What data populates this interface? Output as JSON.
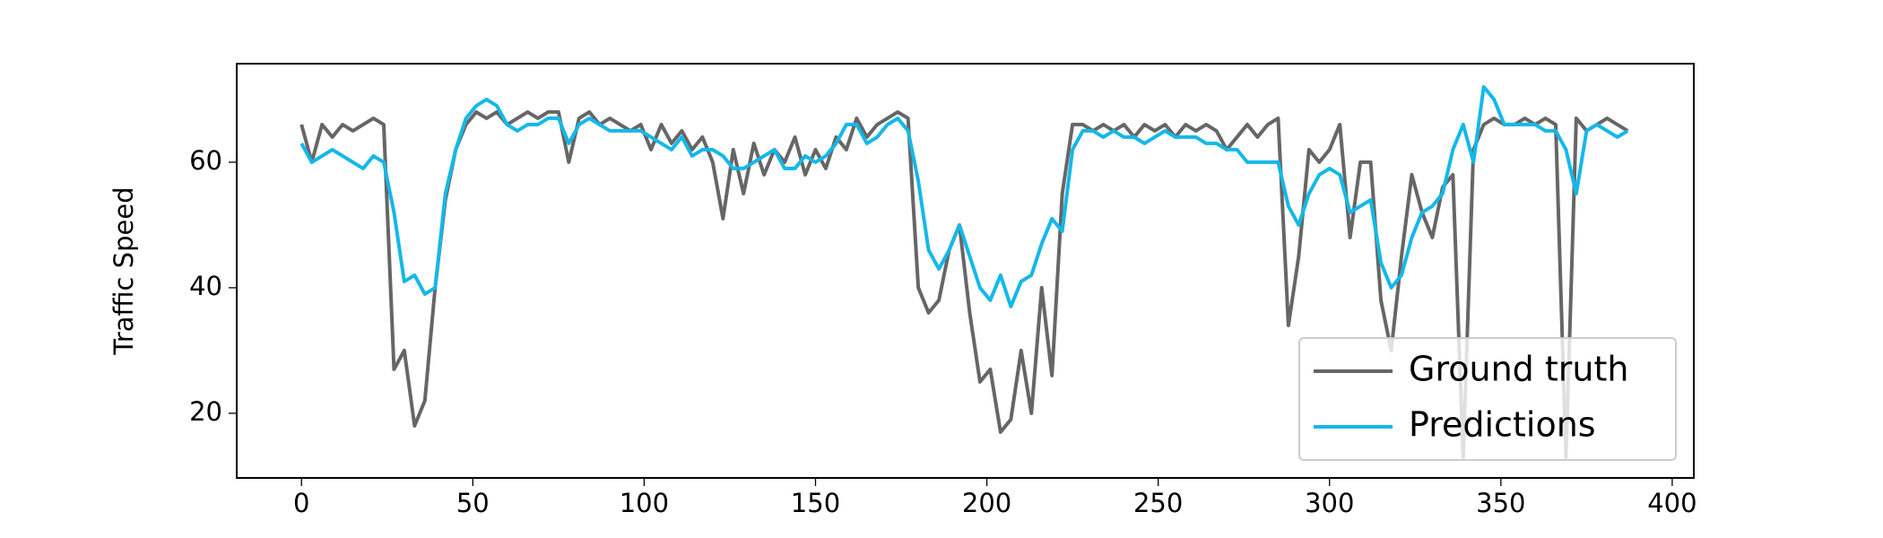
{
  "chart_data": {
    "type": "line",
    "y_label": "Traffic Speed",
    "x": [
      0,
      3,
      6,
      9,
      12,
      15,
      18,
      21,
      24,
      27,
      30,
      33,
      36,
      39,
      42,
      45,
      48,
      51,
      54,
      57,
      60,
      63,
      66,
      69,
      72,
      75,
      78,
      81,
      84,
      87,
      90,
      93,
      96,
      99,
      102,
      105,
      108,
      111,
      114,
      117,
      120,
      123,
      126,
      129,
      132,
      135,
      138,
      141,
      144,
      147,
      150,
      153,
      156,
      159,
      162,
      165,
      168,
      171,
      174,
      177,
      180,
      183,
      186,
      189,
      192,
      195,
      198,
      201,
      204,
      207,
      210,
      213,
      216,
      219,
      222,
      225,
      228,
      231,
      234,
      237,
      240,
      243,
      246,
      249,
      252,
      255,
      258,
      261,
      264,
      267,
      270,
      273,
      276,
      279,
      282,
      285,
      288,
      291,
      294,
      297,
      300,
      303,
      306,
      309,
      312,
      315,
      318,
      321,
      324,
      327,
      330,
      333,
      336,
      339,
      342,
      345,
      348,
      351,
      354,
      357,
      360,
      363,
      366,
      369,
      372,
      375,
      378,
      381,
      384,
      387
    ],
    "series": [
      {
        "name": "Ground truth",
        "color": "#666666",
        "values": [
          66,
          60,
          66,
          64,
          66,
          65,
          66,
          67,
          66,
          27,
          30,
          18,
          22,
          40,
          54,
          62,
          66,
          68,
          67,
          68,
          66,
          67,
          68,
          67,
          68,
          68,
          60,
          67,
          68,
          66,
          67,
          66,
          65,
          66,
          62,
          66,
          63,
          65,
          62,
          64,
          60,
          51,
          62,
          55,
          63,
          58,
          62,
          60,
          64,
          58,
          62,
          59,
          64,
          62,
          67,
          64,
          66,
          67,
          68,
          67,
          40,
          36,
          38,
          46,
          50,
          36,
          25,
          27,
          17,
          19,
          30,
          20,
          40,
          26,
          55,
          66,
          66,
          65,
          66,
          65,
          66,
          64,
          66,
          65,
          66,
          64,
          66,
          65,
          66,
          65,
          62,
          64,
          66,
          64,
          66,
          67,
          34,
          45,
          62,
          60,
          62,
          66,
          48,
          60,
          60,
          38,
          30,
          45,
          58,
          52,
          48,
          56,
          58,
          13,
          62,
          66,
          67,
          66,
          66,
          67,
          66,
          67,
          66,
          13,
          67,
          65,
          66,
          67,
          66,
          65
        ]
      },
      {
        "name": "Predictions",
        "color": "#14b8e8",
        "values": [
          63,
          60,
          61,
          62,
          61,
          60,
          59,
          61,
          60,
          52,
          41,
          42,
          39,
          40,
          55,
          62,
          67,
          69,
          70,
          69,
          66,
          65,
          66,
          66,
          67,
          67,
          63,
          66,
          67,
          66,
          65,
          65,
          65,
          65,
          64,
          63,
          62,
          64,
          61,
          62,
          62,
          61,
          59,
          59,
          60,
          61,
          62,
          59,
          59,
          61,
          60,
          61,
          63,
          66,
          66,
          63,
          64,
          66,
          67,
          65,
          57,
          46,
          43,
          46,
          50,
          45,
          40,
          38,
          42,
          37,
          41,
          42,
          47,
          51,
          49,
          62,
          65,
          65,
          64,
          65,
          64,
          64,
          63,
          64,
          65,
          64,
          64,
          64,
          63,
          63,
          62,
          62,
          60,
          60,
          60,
          60,
          53,
          50,
          55,
          58,
          59,
          58,
          52,
          53,
          54,
          44,
          40,
          42,
          48,
          52,
          53,
          55,
          62,
          66,
          60,
          72,
          70,
          66,
          66,
          66,
          66,
          65,
          65,
          62,
          55,
          65,
          66,
          65,
          64,
          65
        ]
      }
    ],
    "xlim": [
      -18.9,
      406.3
    ],
    "xticks": [
      0,
      50,
      100,
      150,
      200,
      250,
      300,
      350,
      400
    ],
    "ylim": [
      9.7,
      75.7
    ],
    "yticks": [
      20,
      40,
      60
    ],
    "grid": false,
    "legend": "lower right"
  }
}
